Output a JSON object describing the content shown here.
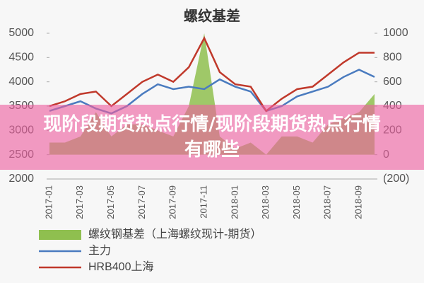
{
  "chart_data": {
    "type": "line",
    "title": "螺纹基差",
    "categories": [
      "2017-01",
      null,
      "2017-03",
      null,
      "2017-05",
      null,
      "2017-07",
      null,
      "2017-09",
      null,
      "2017-11",
      null,
      "2018-01",
      null,
      "2018-03",
      null,
      "2018-05",
      null,
      "2018-07",
      null,
      "2018-09",
      null
    ],
    "series": [
      {
        "name": "螺纹钢基差（上海螺纹现计-期货）",
        "color": "#8fbf4f",
        "axis": "y2",
        "kind": "area",
        "values": [
          100,
          100,
          150,
          350,
          150,
          250,
          250,
          200,
          150,
          400,
          1000,
          150,
          50,
          100,
          0,
          150,
          150,
          100,
          250,
          300,
          350,
          500
        ]
      },
      {
        "name": "主力",
        "color": "#4a7bbf",
        "values": [
          3400,
          3500,
          3600,
          3450,
          3350,
          3500,
          3750,
          3950,
          3850,
          3900,
          3850,
          4050,
          3900,
          3800,
          3400,
          3500,
          3700,
          3800,
          3900,
          4100,
          4250,
          4100
        ]
      },
      {
        "name": "HRB400上海",
        "color": "#c0392b",
        "values": [
          3500,
          3600,
          3750,
          3800,
          3500,
          3750,
          4000,
          4150,
          4000,
          4300,
          4900,
          4200,
          3950,
          3900,
          3400,
          3650,
          3850,
          3900,
          4150,
          4400,
          4600,
          4600
        ]
      }
    ],
    "ylim": [
      2000,
      5000
    ],
    "yticks": [
      2000,
      2500,
      3000,
      3500,
      4000,
      4500,
      5000
    ],
    "y2lim": [
      -200,
      1000
    ],
    "y2ticks": [
      {
        "value": -200,
        "label": "(200)"
      },
      0,
      200,
      400,
      600,
      800,
      1000
    ],
    "grid": false
  },
  "banner": "现阶段期货热点行情/现阶段期货热点行情有哪些"
}
